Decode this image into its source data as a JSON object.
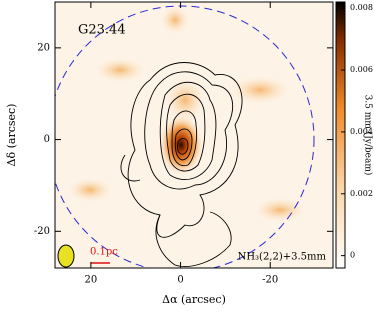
{
  "chart_data": {
    "type": "image",
    "title": "G23.44",
    "line_label": "NH₃(2,2)+3.5mm",
    "scale_label": "0.1pc",
    "x_label": "Δα (arcsec)",
    "y_label": "Δδ (arcsec)",
    "xlim": [
      28,
      -34
    ],
    "xticks": [
      20,
      0,
      -20
    ],
    "ylim": [
      -28,
      30
    ],
    "yticks": [
      -20,
      0,
      20
    ],
    "colorbar": {
      "label": "3.5 mm (Jy/beam)",
      "lim": [
        -0.0004,
        0.0082
      ],
      "ticks": [
        0,
        0.002,
        0.004,
        0.006,
        0.008
      ]
    }
  }
}
